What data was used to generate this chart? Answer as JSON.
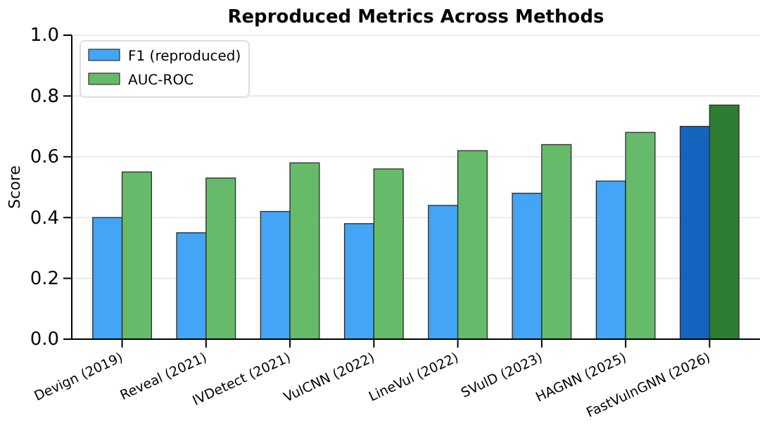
{
  "chart_data": {
    "type": "bar",
    "title": "Reproduced Metrics Across Methods",
    "ylabel": "Score",
    "categories": [
      "Devign (2019)",
      "Reveal (2021)",
      "IVDetect (2021)",
      "VulCNN (2022)",
      "LineVul (2022)",
      "SVulD (2023)",
      "HAGNN (2025)",
      "FastVulnGNN (2026)"
    ],
    "series": [
      {
        "name": "F1 (reproduced)",
        "color": "#42a5f5",
        "colors": [
          "#42a5f5",
          "#42a5f5",
          "#42a5f5",
          "#42a5f5",
          "#42a5f5",
          "#42a5f5",
          "#42a5f5",
          "#1565c0"
        ],
        "values": [
          0.4,
          0.35,
          0.42,
          0.38,
          0.44,
          0.48,
          0.52,
          0.7
        ]
      },
      {
        "name": "AUC-ROC",
        "color": "#66bb6a",
        "colors": [
          "#66bb6a",
          "#66bb6a",
          "#66bb6a",
          "#66bb6a",
          "#66bb6a",
          "#66bb6a",
          "#66bb6a",
          "#2e7d32"
        ],
        "values": [
          0.55,
          0.53,
          0.58,
          0.56,
          0.62,
          0.64,
          0.68,
          0.77
        ]
      }
    ],
    "ylim": [
      0,
      1
    ],
    "yticks": [
      {
        "value": 0,
        "label": "0.0"
      },
      {
        "value": 0.2,
        "label": "0.2"
      },
      {
        "value": 0.4,
        "label": "0.4"
      },
      {
        "value": 0.6,
        "label": "0.6"
      },
      {
        "value": 0.8,
        "label": "0.8"
      },
      {
        "value": 1,
        "label": "1.0"
      }
    ],
    "grid": "y",
    "legend": "top left"
  }
}
